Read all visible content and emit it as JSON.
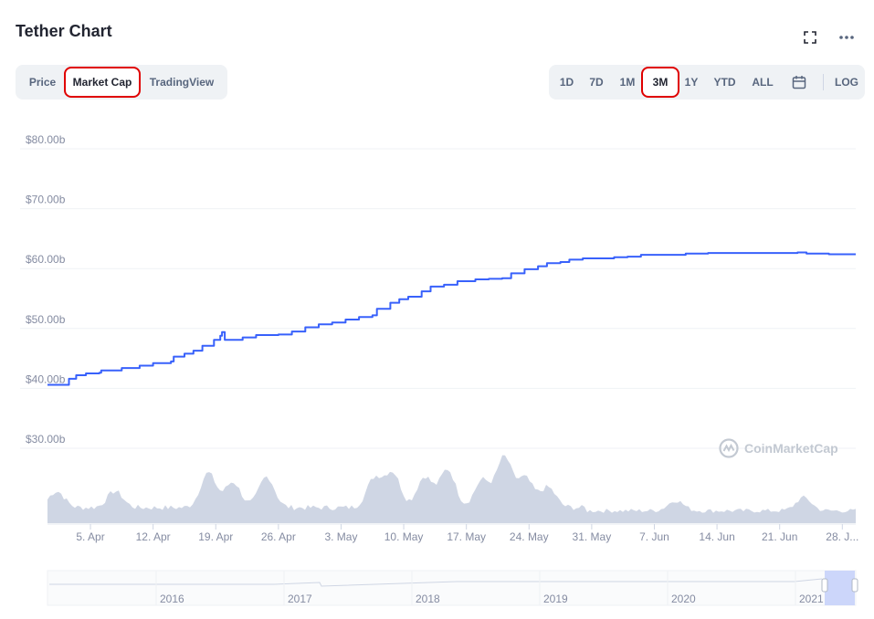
{
  "header": {
    "title": "Tether Chart",
    "expand_icon": "fullscreen-icon",
    "more_icon": "more-horizontal-icon"
  },
  "tabs": {
    "items": [
      "Price",
      "Market Cap",
      "TradingView"
    ],
    "selected": "Market Cap"
  },
  "ranges": {
    "items": [
      "1D",
      "7D",
      "1M",
      "3M",
      "1Y",
      "YTD",
      "ALL"
    ],
    "selected": "3M",
    "calendar_icon": "calendar-icon",
    "log_label": "LOG"
  },
  "watermark": {
    "text": "CoinMarketCap",
    "icon": "coinmarketcap-logo-icon"
  },
  "colors": {
    "line": "#3861fb",
    "volume": "#cfd6e4",
    "grid": "#eff2f5",
    "axis_text": "#858ca2",
    "highlight": "#e00000",
    "navigator_window": "#c7d2f9"
  },
  "chart_data": {
    "type": "line",
    "title": "",
    "ylabel": "",
    "xlabel": "",
    "ylim": [
      25,
      82
    ],
    "y_ticks": [
      "$30.00b",
      "$40.00b",
      "$50.00b",
      "$60.00b",
      "$70.00b",
      "$80.00b"
    ],
    "y_tick_values": [
      30,
      40,
      50,
      60,
      70,
      80
    ],
    "x_tick_labels": [
      "5. Apr",
      "12. Apr",
      "19. Apr",
      "26. Apr",
      "3. May",
      "10. May",
      "17. May",
      "24. May",
      "31. May",
      "7. Jun",
      "14. Jun",
      "21. Jun",
      "28. J..."
    ],
    "x_tick_days": [
      4,
      11,
      18,
      25,
      32,
      39,
      46,
      53,
      60,
      67,
      74,
      81,
      88
    ],
    "x_range_days": [
      -0.8,
      89.5
    ],
    "series": [
      {
        "points": [
          [
            -0.8,
            40.6
          ],
          [
            1.5,
            40.6
          ],
          [
            1.6,
            41.6
          ],
          [
            2.4,
            42.2
          ],
          [
            3.5,
            42.5
          ],
          [
            5.0,
            42.6
          ],
          [
            5.2,
            43.0
          ],
          [
            7.5,
            43.4
          ],
          [
            9.5,
            43.8
          ],
          [
            11.0,
            44.2
          ],
          [
            13.0,
            44.5
          ],
          [
            13.3,
            45.3
          ],
          [
            14.5,
            45.8
          ],
          [
            15.5,
            46.3
          ],
          [
            16.5,
            47.1
          ],
          [
            17.8,
            48.1
          ],
          [
            18.5,
            48.8
          ],
          [
            18.7,
            49.4
          ],
          [
            19.0,
            48.1
          ],
          [
            21.0,
            48.5
          ],
          [
            22.5,
            48.9
          ],
          [
            25.0,
            49.0
          ],
          [
            26.5,
            49.5
          ],
          [
            28.0,
            50.2
          ],
          [
            29.5,
            50.7
          ],
          [
            31.0,
            51.0
          ],
          [
            32.5,
            51.5
          ],
          [
            34.0,
            51.9
          ],
          [
            35.5,
            52.2
          ],
          [
            36.0,
            53.3
          ],
          [
            37.5,
            54.3
          ],
          [
            38.5,
            54.9
          ],
          [
            39.5,
            55.3
          ],
          [
            41.0,
            56.2
          ],
          [
            42.0,
            57.0
          ],
          [
            43.5,
            57.3
          ],
          [
            45.0,
            57.9
          ],
          [
            47.0,
            58.2
          ],
          [
            48.5,
            58.3
          ],
          [
            50.0,
            58.4
          ],
          [
            51.0,
            59.2
          ],
          [
            52.5,
            59.9
          ],
          [
            54.0,
            60.4
          ],
          [
            55.0,
            60.9
          ],
          [
            56.5,
            61.1
          ],
          [
            57.5,
            61.5
          ],
          [
            59.0,
            61.7
          ],
          [
            61.0,
            61.7
          ],
          [
            62.5,
            61.9
          ],
          [
            64.0,
            62.0
          ],
          [
            65.5,
            62.3
          ],
          [
            68.0,
            62.3
          ],
          [
            70.5,
            62.5
          ],
          [
            73.0,
            62.6
          ],
          [
            78.0,
            62.6
          ],
          [
            81.0,
            62.6
          ],
          [
            83.0,
            62.7
          ],
          [
            84.0,
            62.5
          ],
          [
            86.5,
            62.4
          ],
          [
            89.5,
            62.4
          ]
        ]
      }
    ],
    "navigator": {
      "labels": [
        "2016",
        "2017",
        "2018",
        "2019",
        "2020",
        "2021"
      ]
    }
  }
}
